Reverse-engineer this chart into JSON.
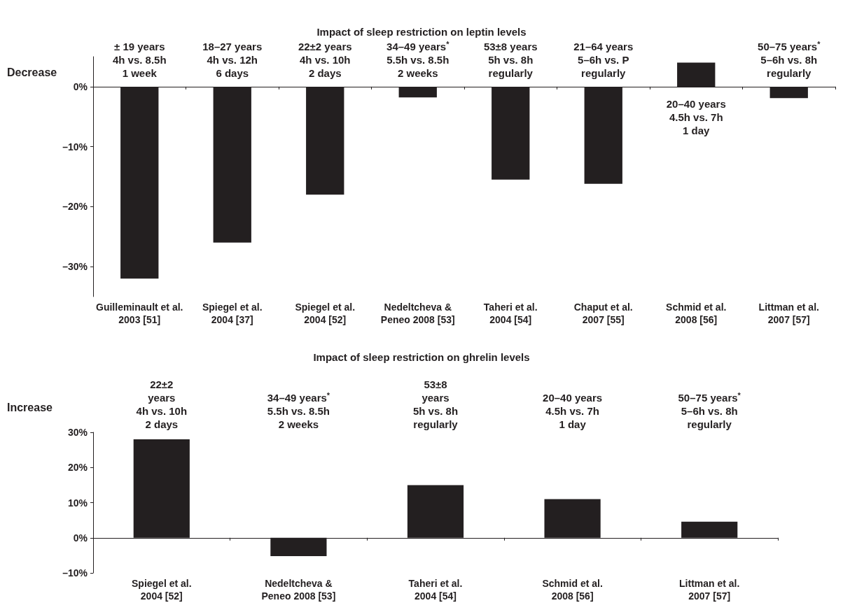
{
  "chart_data": [
    {
      "type": "bar",
      "title": "Impact of sleep restriction on leptin levels",
      "ylabel": "Decrease",
      "categories": [
        "Guilleminault et al.\n2003 [51]",
        "Spiegel et al.\n2004 [37]",
        "Spiegel et al.\n2004 [52]",
        "Nedeltcheva &\nPeneo 2008 [53]",
        "Taheri et al.\n2004 [54]",
        "Chaput et al.\n2007 [55]",
        "Schmid et al.\n2008 [56]",
        "Littman et al.\n2007 [57]"
      ],
      "values": [
        -32,
        -26,
        -18,
        -1.8,
        -15.5,
        -16.2,
        4,
        -1.9
      ],
      "color": "#231f20",
      "ylim": [
        -35,
        5
      ],
      "yticks": [
        {
          "value": 0,
          "label": "0%"
        },
        {
          "value": -10,
          "label": "–10%"
        },
        {
          "value": -20,
          "label": "–20%"
        },
        {
          "value": -30,
          "label": "–30%"
        }
      ],
      "annotations": [
        "± 19 years\n4h vs. 8.5h\n1 week",
        "18–27 years\n4h vs. 12h\n6 days",
        "22±2 years\n4h vs. 10h\n2 days",
        "34–49 years$^{*}$\n5.5h vs. 8.5h\n2 weeks",
        "53±8 years\n5h vs. 8h\nregularly",
        "21–64 years\n5–6h vs. P\nregularly",
        "20–40 years\n4.5h vs. 7h\n1 day",
        "50–75 years$^{*}$\n5–6h vs. 8h\nregularly"
      ]
    },
    {
      "type": "bar",
      "title": "Impact of sleep restriction on ghrelin levels",
      "ylabel": "Increase",
      "categories": [
        "Spiegel et al.\n2004 [52]",
        "Nedeltcheva &\nPeneo 2008 [53]",
        "Taheri et al.\n2004 [54]",
        "Schmid et al.\n2008 [56]",
        "Littman et al.\n2007 [57]"
      ],
      "values": [
        28,
        -5.2,
        15,
        11,
        4.6
      ],
      "color": "#231f20",
      "ylim": [
        -10,
        30
      ],
      "yticks": [
        {
          "value": -10,
          "label": "–10%"
        },
        {
          "value": 0,
          "label": "0%"
        },
        {
          "value": 10,
          "label": "10%"
        },
        {
          "value": 20,
          "label": "20%"
        },
        {
          "value": 30,
          "label": "30%"
        }
      ],
      "annotations": [
        "22±2\nyears\n4h vs. 10h\n2 days",
        "34–49 years$^{*}$\n5.5h vs. 8.5h\n2 weeks",
        "53±8\nyears\n5h vs. 8h\nregularly",
        "20–40 years\n4.5h vs. 7h\n1 day",
        "50–75 years$^{*}$\n5–6h vs. 8h\nregularly"
      ]
    }
  ]
}
